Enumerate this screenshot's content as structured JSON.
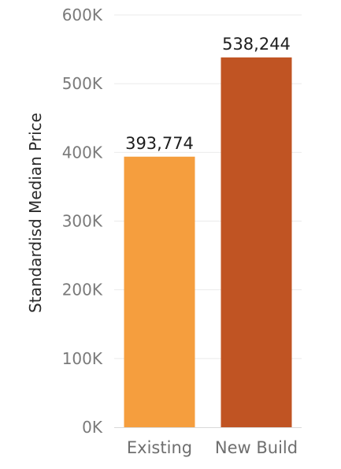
{
  "chart_data": {
    "type": "bar",
    "ylabel": "Standardisd Median Price",
    "xlabel": "",
    "categories": [
      "Existing",
      "New Build"
    ],
    "values": [
      393774,
      538244
    ],
    "data_labels": [
      "393,774",
      "538,244"
    ],
    "colors": [
      "#f59e3e",
      "#c05423"
    ],
    "ylim": [
      0,
      600000
    ],
    "yticks": [
      0,
      100000,
      200000,
      300000,
      400000,
      500000,
      600000
    ],
    "ytick_labels": [
      "0K",
      "100K",
      "200K",
      "300K",
      "400K",
      "500K",
      "600K"
    ],
    "grid": true,
    "legend": "none"
  }
}
